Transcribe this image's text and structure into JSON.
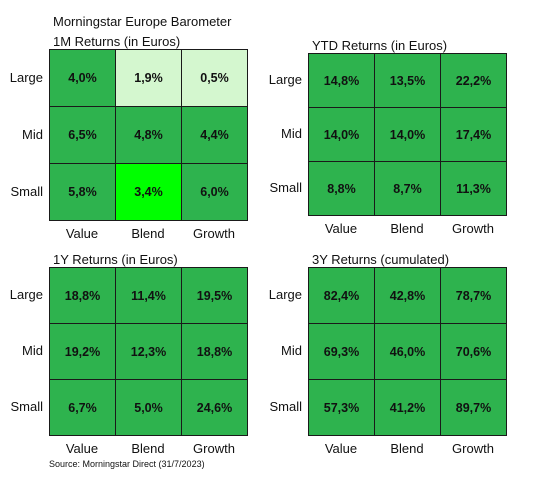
{
  "header": {
    "title": "Morningstar Europe Barometer"
  },
  "source": "Source: Morningstar Direct (31/7/2023)",
  "colors": {
    "medium": "#2eb34e",
    "pale": "#d4f7cf",
    "bright": "#00ff00"
  },
  "chart_data": [
    {
      "type": "heatmap",
      "title": "1M Returns (in Euros)",
      "rows": [
        "Large",
        "Mid",
        "Small"
      ],
      "columns": [
        "Value",
        "Blend",
        "Growth"
      ],
      "values": [
        [
          "4,0%",
          "1,9%",
          "0,5%"
        ],
        [
          "6,5%",
          "4,8%",
          "4,4%"
        ],
        [
          "5,8%",
          "3,4%",
          "6,0%"
        ]
      ],
      "cell_colors": [
        [
          "#2eb34e",
          "#d4f7cf",
          "#d4f7cf"
        ],
        [
          "#2eb34e",
          "#2eb34e",
          "#2eb34e"
        ],
        [
          "#2eb34e",
          "#00ff00",
          "#2eb34e"
        ]
      ]
    },
    {
      "type": "heatmap",
      "title": "YTD Returns (in Euros)",
      "rows": [
        "Large",
        "Mid",
        "Small"
      ],
      "columns": [
        "Value",
        "Blend",
        "Growth"
      ],
      "values": [
        [
          "14,8%",
          "13,5%",
          "22,2%"
        ],
        [
          "14,0%",
          "14,0%",
          "17,4%"
        ],
        [
          "8,8%",
          "8,7%",
          "11,3%"
        ]
      ],
      "cell_colors": [
        [
          "#2eb34e",
          "#2eb34e",
          "#2eb34e"
        ],
        [
          "#2eb34e",
          "#2eb34e",
          "#2eb34e"
        ],
        [
          "#2eb34e",
          "#2eb34e",
          "#2eb34e"
        ]
      ]
    },
    {
      "type": "heatmap",
      "title": "1Y Returns (in Euros)",
      "rows": [
        "Large",
        "Mid",
        "Small"
      ],
      "columns": [
        "Value",
        "Blend",
        "Growth"
      ],
      "values": [
        [
          "18,8%",
          "11,4%",
          "19,5%"
        ],
        [
          "19,2%",
          "12,3%",
          "18,8%"
        ],
        [
          "6,7%",
          "5,0%",
          "24,6%"
        ]
      ],
      "cell_colors": [
        [
          "#2eb34e",
          "#2eb34e",
          "#2eb34e"
        ],
        [
          "#2eb34e",
          "#2eb34e",
          "#2eb34e"
        ],
        [
          "#2eb34e",
          "#2eb34e",
          "#2eb34e"
        ]
      ]
    },
    {
      "type": "heatmap",
      "title": "3Y Returns (cumulated)",
      "rows": [
        "Large",
        "Mid",
        "Small"
      ],
      "columns": [
        "Value",
        "Blend",
        "Growth"
      ],
      "values": [
        [
          "82,4%",
          "42,8%",
          "78,7%"
        ],
        [
          "69,3%",
          "46,0%",
          "70,6%"
        ],
        [
          "57,3%",
          "41,2%",
          "89,7%"
        ]
      ],
      "cell_colors": [
        [
          "#2eb34e",
          "#2eb34e",
          "#2eb34e"
        ],
        [
          "#2eb34e",
          "#2eb34e",
          "#2eb34e"
        ],
        [
          "#2eb34e",
          "#2eb34e",
          "#2eb34e"
        ]
      ]
    }
  ]
}
